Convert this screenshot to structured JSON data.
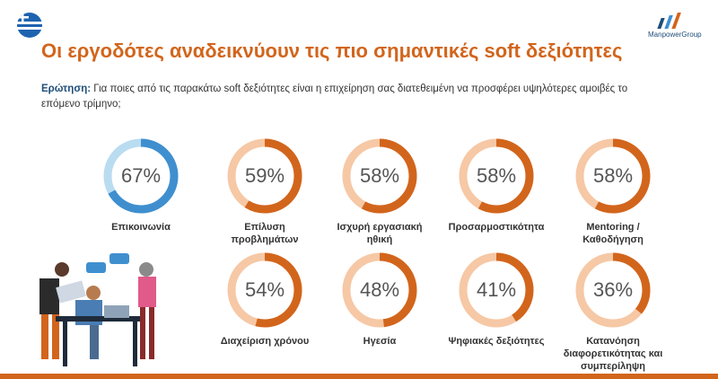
{
  "header": {
    "title": "Οι εργοδότες αναδεικνύουν τις πιο σημαντικές soft δεξιότητες",
    "logo": "ManpowerGroup"
  },
  "question": {
    "label": "Ερώτηση:",
    "text": "Για ποιες από τις παρακάτω soft δεξιότητες είναι η επιχείρηση σας διατεθειμένη να προσφέρει υψηλότερες αμοιβές το επόμενο τρίμηνο;"
  },
  "chart_data": {
    "type": "donut",
    "categories": [
      "Επικοινωνία",
      "Επίλυση προβλημάτων",
      "Ισχυρή εργασιακή ηθική",
      "Προσαρμοστικότητα",
      "Mentoring / Καθοδήγηση",
      "Διαχείριση χρόνου",
      "Ηγεσία",
      "Ψηφιακές δεξιότητες",
      "Κατανόηση διαφορετικότητας και συμπερίληψη"
    ],
    "values": [
      67,
      59,
      58,
      58,
      58,
      54,
      48,
      41,
      36
    ],
    "value_labels": [
      "67%",
      "59%",
      "58%",
      "58%",
      "58%",
      "54%",
      "48%",
      "41%",
      "36%"
    ],
    "colors": [
      "#3f8fcf",
      "#d2651c",
      "#d2651c",
      "#d2651c",
      "#d2651c",
      "#d2651c",
      "#d2651c",
      "#d2651c",
      "#d2651c"
    ],
    "track_colors": [
      "#b9dcf1",
      "#f6c8a5",
      "#f6c8a5",
      "#f6c8a5",
      "#f6c8a5",
      "#f6c8a5",
      "#f6c8a5",
      "#f6c8a5",
      "#f6c8a5"
    ],
    "ylim": [
      0,
      100
    ]
  }
}
